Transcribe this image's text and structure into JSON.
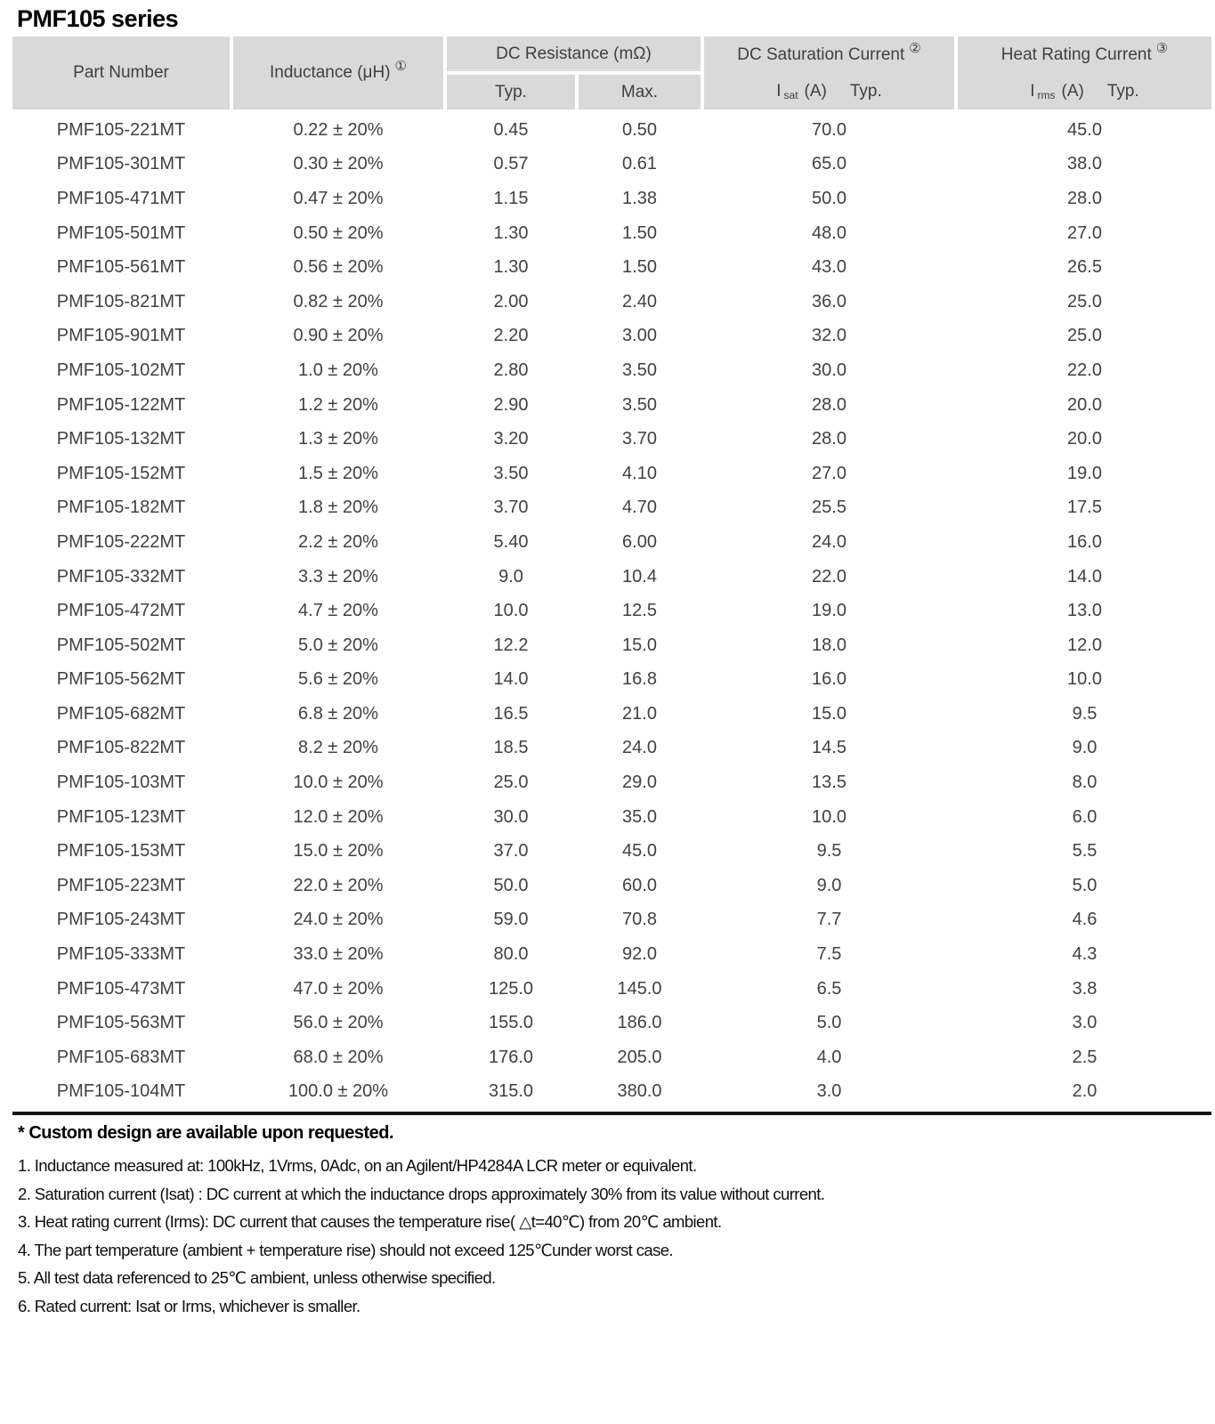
{
  "title": "PMF105 series",
  "table": {
    "col_headers": {
      "part_number": "Part Number",
      "inductance_label": "Inductance (μH)",
      "inductance_sup": "①",
      "dc_resistance": "DC Resistance (mΩ)",
      "typ": "Typ.",
      "max": "Max.",
      "sat_title": "DC Saturation Current",
      "sat_sup": "②",
      "sat_symbol": "I",
      "sat_sub": "sat",
      "sat_unit": "(A)",
      "sat_typ": "Typ.",
      "heat_title": "Heat Rating Current",
      "heat_sup": "③",
      "heat_symbol": "I",
      "heat_sub": "rms",
      "heat_unit": "(A)",
      "heat_typ": "Typ."
    },
    "rows": [
      [
        "PMF105-221MT",
        "0.22 ± 20%",
        "0.45",
        "0.50",
        "70.0",
        "45.0"
      ],
      [
        "PMF105-301MT",
        "0.30 ± 20%",
        "0.57",
        "0.61",
        "65.0",
        "38.0"
      ],
      [
        "PMF105-471MT",
        "0.47 ± 20%",
        "1.15",
        "1.38",
        "50.0",
        "28.0"
      ],
      [
        "PMF105-501MT",
        "0.50 ± 20%",
        "1.30",
        "1.50",
        "48.0",
        "27.0"
      ],
      [
        "PMF105-561MT",
        "0.56 ± 20%",
        "1.30",
        "1.50",
        "43.0",
        "26.5"
      ],
      [
        "PMF105-821MT",
        "0.82 ± 20%",
        "2.00",
        "2.40",
        "36.0",
        "25.0"
      ],
      [
        "PMF105-901MT",
        "0.90 ± 20%",
        "2.20",
        "3.00",
        "32.0",
        "25.0"
      ],
      [
        "PMF105-102MT",
        "1.0 ± 20%",
        "2.80",
        "3.50",
        "30.0",
        "22.0"
      ],
      [
        "PMF105-122MT",
        "1.2 ± 20%",
        "2.90",
        "3.50",
        "28.0",
        "20.0"
      ],
      [
        "PMF105-132MT",
        "1.3 ± 20%",
        "3.20",
        "3.70",
        "28.0",
        "20.0"
      ],
      [
        "PMF105-152MT",
        "1.5 ± 20%",
        "3.50",
        "4.10",
        "27.0",
        "19.0"
      ],
      [
        "PMF105-182MT",
        "1.8 ± 20%",
        "3.70",
        "4.70",
        "25.5",
        "17.5"
      ],
      [
        "PMF105-222MT",
        "2.2 ± 20%",
        "5.40",
        "6.00",
        "24.0",
        "16.0"
      ],
      [
        "PMF105-332MT",
        "3.3 ± 20%",
        "9.0",
        "10.4",
        "22.0",
        "14.0"
      ],
      [
        "PMF105-472MT",
        "4.7 ± 20%",
        "10.0",
        "12.5",
        "19.0",
        "13.0"
      ],
      [
        "PMF105-502MT",
        "5.0 ± 20%",
        "12.2",
        "15.0",
        "18.0",
        "12.0"
      ],
      [
        "PMF105-562MT",
        "5.6 ± 20%",
        "14.0",
        "16.8",
        "16.0",
        "10.0"
      ],
      [
        "PMF105-682MT",
        "6.8 ± 20%",
        "16.5",
        "21.0",
        "15.0",
        "9.5"
      ],
      [
        "PMF105-822MT",
        "8.2 ± 20%",
        "18.5",
        "24.0",
        "14.5",
        "9.0"
      ],
      [
        "PMF105-103MT",
        "10.0 ± 20%",
        "25.0",
        "29.0",
        "13.5",
        "8.0"
      ],
      [
        "PMF105-123MT",
        "12.0 ± 20%",
        "30.0",
        "35.0",
        "10.0",
        "6.0"
      ],
      [
        "PMF105-153MT",
        "15.0 ± 20%",
        "37.0",
        "45.0",
        "9.5",
        "5.5"
      ],
      [
        "PMF105-223MT",
        "22.0 ± 20%",
        "50.0",
        "60.0",
        "9.0",
        "5.0"
      ],
      [
        "PMF105-243MT",
        "24.0 ± 20%",
        "59.0",
        "70.8",
        "7.7",
        "4.6"
      ],
      [
        "PMF105-333MT",
        "33.0 ± 20%",
        "80.0",
        "92.0",
        "7.5",
        "4.3"
      ],
      [
        "PMF105-473MT",
        "47.0 ± 20%",
        "125.0",
        "145.0",
        "6.5",
        "3.8"
      ],
      [
        "PMF105-563MT",
        "56.0 ± 20%",
        "155.0",
        "186.0",
        "5.0",
        "3.0"
      ],
      [
        "PMF105-683MT",
        "68.0 ± 20%",
        "176.0",
        "205.0",
        "4.0",
        "2.5"
      ],
      [
        "PMF105-104MT",
        "100.0 ± 20%",
        "315.0",
        "380.0",
        "3.0",
        "2.0"
      ]
    ]
  },
  "footnotes": {
    "custom": "* Custom design are available upon requested.",
    "notes": [
      "1. Inductance measured at: 100kHz, 1Vrms, 0Adc, on an Agilent/HP4284A LCR meter or equivalent.",
      "2. Saturation current (Isat) : DC current at which the inductance drops approximately 30% from its value without current.",
      "3. Heat rating current (Irms): DC current that causes the temperature rise( △t=40℃) from 20℃ ambient.",
      "4. The part temperature (ambient + temperature rise) should not exceed 125℃under worst case.",
      "5. All test data referenced to 25℃ ambient, unless otherwise specified.",
      "6. Rated current: Isat or Irms, whichever is smaller."
    ]
  },
  "colors": {
    "header_bg": "#d9d9d9",
    "header_text": "#3f3f3f",
    "body_text": "#414141",
    "bottom_rule": "#161616"
  }
}
